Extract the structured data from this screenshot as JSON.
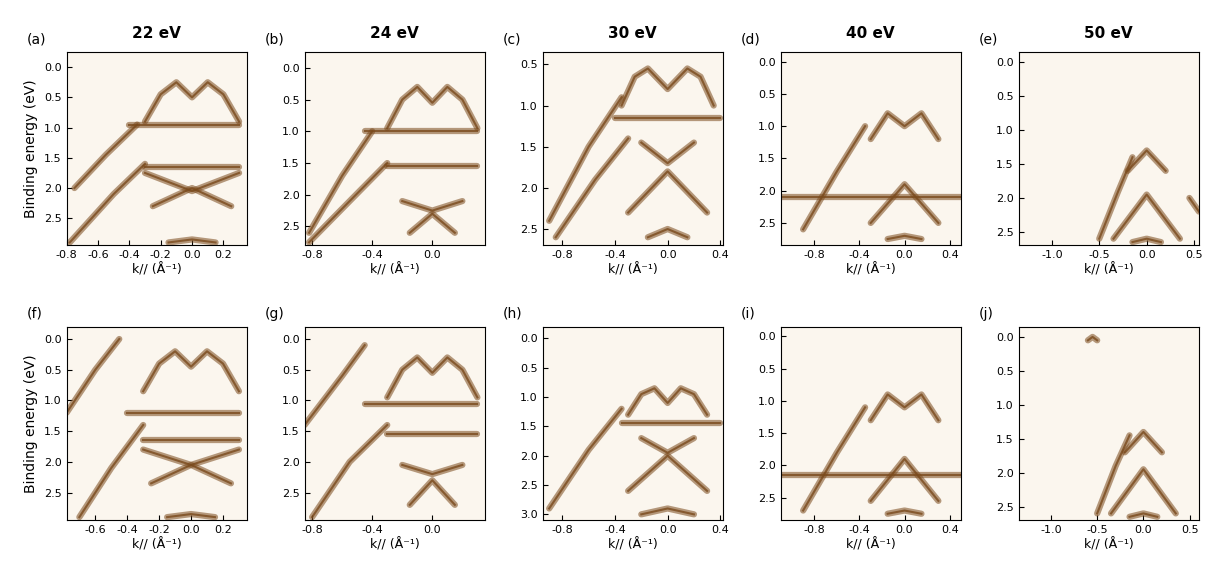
{
  "chart_data": [
    {
      "type": "line",
      "title": "22 eV",
      "annotation": "(a)",
      "color": "#7a4a1c",
      "xlabel": "k// (Å⁻¹)",
      "ylabel": "Binding energy (eV)",
      "xlim": [
        -0.8,
        0.35
      ],
      "ylim": [
        2.95,
        -0.25
      ],
      "xticks": [
        -0.8,
        -0.6,
        -0.4,
        -0.2,
        {
          "value": 0,
          "label": "0.0"
        },
        0.2
      ],
      "yticks": [
        {
          "value": 0,
          "label": "0.0"
        },
        0.5,
        {
          "value": 1,
          "label": "1.0"
        },
        1.5,
        {
          "value": 2,
          "label": "2.0"
        },
        2.5
      ],
      "series": [
        {
          "x": [
            -0.75,
            -0.55,
            -0.35
          ],
          "values": [
            2.0,
            1.45,
            0.95
          ]
        },
        {
          "x": [
            -0.78,
            -0.5,
            -0.3
          ],
          "values": [
            2.9,
            2.1,
            1.6
          ]
        },
        {
          "x": [
            -0.3,
            -0.2,
            -0.1,
            0.0,
            0.1,
            0.2,
            0.3
          ],
          "values": [
            0.9,
            0.45,
            0.25,
            0.5,
            0.25,
            0.45,
            0.9
          ]
        },
        {
          "x": [
            -0.4,
            0.3
          ],
          "values": [
            0.95,
            0.95
          ]
        },
        {
          "x": [
            -0.3,
            0.3
          ],
          "values": [
            1.65,
            1.65
          ]
        },
        {
          "x": [
            -0.3,
            0.0,
            0.3
          ],
          "values": [
            1.75,
            2.05,
            1.75
          ]
        },
        {
          "x": [
            -0.25,
            0.0,
            0.25
          ],
          "values": [
            2.3,
            2.0,
            2.3
          ]
        },
        {
          "x": [
            -0.15,
            0.0,
            0.15
          ],
          "values": [
            2.9,
            2.85,
            2.9
          ]
        }
      ]
    },
    {
      "type": "line",
      "title": "24 eV",
      "annotation": "(b)",
      "color": "#7a4a1c",
      "xlabel": "k// (Å⁻¹)",
      "xlim": [
        -0.85,
        0.35
      ],
      "ylim": [
        2.8,
        -0.25
      ],
      "xticks": [
        -0.8,
        -0.4,
        {
          "value": 0,
          "label": "0.0"
        }
      ],
      "yticks": [
        {
          "value": 0,
          "label": "0.0"
        },
        0.5,
        {
          "value": 1,
          "label": "1.0"
        },
        1.5,
        {
          "value": 2,
          "label": "2.0"
        },
        2.5
      ],
      "series": [
        {
          "x": [
            -0.82,
            -0.6,
            -0.4
          ],
          "values": [
            2.6,
            1.7,
            1.0
          ]
        },
        {
          "x": [
            -0.82,
            -0.55,
            -0.3
          ],
          "values": [
            2.75,
            2.1,
            1.5
          ]
        },
        {
          "x": [
            -0.3,
            -0.2,
            -0.1,
            0.0,
            0.1,
            0.2,
            0.3
          ],
          "values": [
            0.95,
            0.5,
            0.3,
            0.55,
            0.3,
            0.5,
            0.95
          ]
        },
        {
          "x": [
            -0.45,
            0.3
          ],
          "values": [
            1.0,
            1.0
          ]
        },
        {
          "x": [
            -0.3,
            0.3
          ],
          "values": [
            1.55,
            1.55
          ]
        },
        {
          "x": [
            -0.2,
            0.0,
            0.2
          ],
          "values": [
            2.1,
            2.25,
            2.1
          ]
        },
        {
          "x": [
            -0.15,
            0.0,
            0.15
          ],
          "values": [
            2.6,
            2.3,
            2.6
          ]
        }
      ]
    },
    {
      "type": "line",
      "title": "30 eV",
      "annotation": "(c)",
      "color": "#7a4a1c",
      "xlabel": "k// (Å⁻¹)",
      "xlim": [
        -0.95,
        0.42
      ],
      "ylim": [
        2.7,
        0.35
      ],
      "xticks": [
        -0.8,
        -0.4,
        {
          "value": 0,
          "label": "0.0"
        },
        0.4
      ],
      "yticks": [
        0.5,
        {
          "value": 1,
          "label": "1.0"
        },
        1.5,
        {
          "value": 2,
          "label": "2.0"
        },
        2.5
      ],
      "series": [
        {
          "x": [
            -0.9,
            -0.6,
            -0.35
          ],
          "values": [
            2.4,
            1.5,
            0.9
          ]
        },
        {
          "x": [
            -0.85,
            -0.55,
            -0.3
          ],
          "values": [
            2.6,
            1.9,
            1.4
          ]
        },
        {
          "x": [
            -0.35,
            -0.25,
            -0.15,
            0.0,
            0.15,
            0.25,
            0.35
          ],
          "values": [
            1.0,
            0.65,
            0.55,
            0.8,
            0.55,
            0.65,
            1.0
          ]
        },
        {
          "x": [
            -0.4,
            0.4
          ],
          "values": [
            1.15,
            1.15
          ]
        },
        {
          "x": [
            -0.2,
            0.0,
            0.2
          ],
          "values": [
            1.45,
            1.7,
            1.45
          ]
        },
        {
          "x": [
            -0.3,
            0.0,
            0.3
          ],
          "values": [
            2.3,
            1.8,
            2.3
          ]
        },
        {
          "x": [
            -0.15,
            0.0,
            0.15
          ],
          "values": [
            2.6,
            2.5,
            2.6
          ]
        }
      ]
    },
    {
      "type": "line",
      "title": "40 eV",
      "annotation": "(d)",
      "color": "#7a4a1c",
      "xlabel": "k// (Å⁻¹)",
      "xlim": [
        -1.1,
        0.5
      ],
      "ylim": [
        2.85,
        -0.15
      ],
      "xticks": [
        -0.8,
        -0.4,
        {
          "value": 0,
          "label": "0.0"
        },
        0.4
      ],
      "yticks": [
        {
          "value": 0,
          "label": "0.0"
        },
        0.5,
        {
          "value": 1,
          "label": "1.0"
        },
        1.5,
        {
          "value": 2,
          "label": "2.0"
        },
        2.5
      ],
      "series": [
        {
          "x": [
            -0.9,
            -0.6,
            -0.35
          ],
          "values": [
            2.6,
            1.7,
            1.0
          ]
        },
        {
          "x": [
            -0.3,
            -0.15,
            0.0,
            0.15,
            0.3
          ],
          "values": [
            1.2,
            0.8,
            1.0,
            0.8,
            1.2
          ]
        },
        {
          "x": [
            -0.3,
            0.0,
            0.3
          ],
          "values": [
            2.5,
            1.9,
            2.5
          ]
        },
        {
          "x": [
            -1.1,
            0.5
          ],
          "values": [
            2.1,
            2.1
          ]
        },
        {
          "x": [
            -0.15,
            0.0,
            0.15
          ],
          "values": [
            2.75,
            2.7,
            2.75
          ]
        }
      ]
    },
    {
      "type": "line",
      "title": "50 eV",
      "annotation": "(e)",
      "color": "#7a4a1c",
      "xlabel": "k// (Å⁻¹)",
      "xlim": [
        -1.35,
        0.55
      ],
      "ylim": [
        2.7,
        -0.15
      ],
      "xticks": [
        {
          "value": -1,
          "label": "-1.0"
        },
        -0.5,
        {
          "value": 0,
          "label": "0.0"
        },
        0.5
      ],
      "yticks": [
        {
          "value": 0,
          "label": "0.0"
        },
        0.5,
        {
          "value": 1,
          "label": "1.0"
        },
        1.5,
        {
          "value": 2,
          "label": "2.0"
        },
        2.5
      ],
      "series": [
        {
          "x": [
            -0.5,
            -0.3,
            -0.15
          ],
          "values": [
            2.6,
            1.9,
            1.4
          ]
        },
        {
          "x": [
            -0.2,
            0.0,
            0.2
          ],
          "values": [
            1.6,
            1.3,
            1.6
          ]
        },
        {
          "x": [
            -0.35,
            0.0,
            0.35
          ],
          "values": [
            2.6,
            1.95,
            2.6
          ]
        },
        {
          "x": [
            -0.15,
            0.0,
            0.15
          ],
          "values": [
            2.65,
            2.6,
            2.65
          ]
        },
        {
          "x": [
            0.45,
            0.55
          ],
          "values": [
            2.0,
            2.2
          ]
        }
      ]
    },
    {
      "type": "line",
      "annotation": "(f)",
      "color": "#7a4a1c",
      "xlabel": "k// (Å⁻¹)",
      "ylabel": "Binding energy (eV)",
      "xlim": [
        -0.78,
        0.35
      ],
      "ylim": [
        2.95,
        -0.2
      ],
      "xticks": [
        -0.6,
        -0.4,
        -0.2,
        {
          "value": 0,
          "label": "0.0"
        },
        0.2
      ],
      "yticks": [
        {
          "value": 0,
          "label": "0.0"
        },
        0.5,
        {
          "value": 1,
          "label": "1.0"
        },
        1.5,
        {
          "value": 2,
          "label": "2.0"
        },
        2.5
      ],
      "series": [
        {
          "x": [
            -0.78,
            -0.6,
            -0.45
          ],
          "values": [
            1.2,
            0.5,
            0.0
          ]
        },
        {
          "x": [
            -0.7,
            -0.5,
            -0.3
          ],
          "values": [
            2.9,
            2.1,
            1.4
          ]
        },
        {
          "x": [
            -0.3,
            -0.2,
            -0.1,
            0.0,
            0.1,
            0.2,
            0.3
          ],
          "values": [
            0.85,
            0.4,
            0.2,
            0.45,
            0.2,
            0.4,
            0.85
          ]
        },
        {
          "x": [
            -0.4,
            0.3
          ],
          "values": [
            1.2,
            1.2
          ]
        },
        {
          "x": [
            -0.3,
            0.3
          ],
          "values": [
            1.65,
            1.65
          ]
        },
        {
          "x": [
            -0.3,
            0.0,
            0.3
          ],
          "values": [
            1.8,
            2.05,
            1.8
          ]
        },
        {
          "x": [
            -0.25,
            0.0,
            0.25
          ],
          "values": [
            2.35,
            2.05,
            2.35
          ]
        },
        {
          "x": [
            -0.15,
            0.0,
            0.15
          ],
          "values": [
            2.9,
            2.85,
            2.9
          ]
        }
      ]
    },
    {
      "type": "line",
      "annotation": "(g)",
      "color": "#7a4a1c",
      "xlabel": "k// (Å⁻¹)",
      "xlim": [
        -0.85,
        0.35
      ],
      "ylim": [
        2.95,
        -0.2
      ],
      "xticks": [
        -0.8,
        -0.4,
        {
          "value": 0,
          "label": "0.0"
        }
      ],
      "yticks": [
        {
          "value": 0,
          "label": "0.0"
        },
        0.5,
        {
          "value": 1,
          "label": "1.0"
        },
        1.5,
        {
          "value": 2,
          "label": "2.0"
        },
        2.5
      ],
      "series": [
        {
          "x": [
            -0.85,
            -0.6,
            -0.45
          ],
          "values": [
            1.4,
            0.6,
            0.1
          ]
        },
        {
          "x": [
            -0.8,
            -0.55,
            -0.3
          ],
          "values": [
            2.9,
            2.0,
            1.4
          ]
        },
        {
          "x": [
            -0.3,
            -0.2,
            -0.1,
            0.0,
            0.1,
            0.2,
            0.3
          ],
          "values": [
            0.95,
            0.5,
            0.3,
            0.55,
            0.3,
            0.5,
            0.95
          ]
        },
        {
          "x": [
            -0.45,
            0.3
          ],
          "values": [
            1.05,
            1.05
          ]
        },
        {
          "x": [
            -0.3,
            0.3
          ],
          "values": [
            1.55,
            1.55
          ]
        },
        {
          "x": [
            -0.2,
            0.0,
            0.2
          ],
          "values": [
            2.05,
            2.2,
            2.05
          ]
        },
        {
          "x": [
            -0.15,
            0.0,
            0.15
          ],
          "values": [
            2.7,
            2.3,
            2.7
          ]
        }
      ]
    },
    {
      "type": "line",
      "annotation": "(h)",
      "color": "#7a4a1c",
      "xlabel": "k// (Å⁻¹)",
      "xlim": [
        -0.95,
        0.42
      ],
      "ylim": [
        3.1,
        -0.2
      ],
      "xticks": [
        -0.8,
        -0.4,
        {
          "value": 0,
          "label": "0.0"
        },
        0.4
      ],
      "yticks": [
        {
          "value": 0,
          "label": "0.0"
        },
        0.5,
        {
          "value": 1,
          "label": "1.0"
        },
        1.5,
        {
          "value": 2,
          "label": "2.0"
        },
        2.5,
        {
          "value": 3,
          "label": "3.0"
        }
      ],
      "series": [
        {
          "x": [
            -0.9,
            -0.6,
            -0.35
          ],
          "values": [
            2.9,
            1.9,
            1.2
          ]
        },
        {
          "x": [
            -0.3,
            -0.2,
            -0.1,
            0.0,
            0.1,
            0.2,
            0.3
          ],
          "values": [
            1.3,
            0.95,
            0.85,
            1.1,
            0.85,
            0.95,
            1.3
          ]
        },
        {
          "x": [
            -0.35,
            0.4
          ],
          "values": [
            1.45,
            1.45
          ]
        },
        {
          "x": [
            -0.2,
            0.0,
            0.2
          ],
          "values": [
            1.7,
            1.95,
            1.7
          ]
        },
        {
          "x": [
            -0.3,
            0.0,
            0.3
          ],
          "values": [
            2.6,
            2.0,
            2.6
          ]
        },
        {
          "x": [
            -0.2,
            0.0,
            0.2
          ],
          "values": [
            3.0,
            2.9,
            3.0
          ]
        }
      ]
    },
    {
      "type": "line",
      "annotation": "(i)",
      "color": "#7a4a1c",
      "xlabel": "k// (Å⁻¹)",
      "xlim": [
        -1.1,
        0.5
      ],
      "ylim": [
        2.85,
        -0.15
      ],
      "xticks": [
        -0.8,
        -0.4,
        {
          "value": 0,
          "label": "0.0"
        },
        0.4
      ],
      "yticks": [
        {
          "value": 0,
          "label": "0.0"
        },
        0.5,
        {
          "value": 1,
          "label": "1.0"
        },
        1.5,
        {
          "value": 2,
          "label": "2.0"
        },
        2.5
      ],
      "series": [
        {
          "x": [
            -0.9,
            -0.6,
            -0.35
          ],
          "values": [
            2.7,
            1.8,
            1.1
          ]
        },
        {
          "x": [
            -0.3,
            -0.15,
            0.0,
            0.15,
            0.3
          ],
          "values": [
            1.3,
            0.9,
            1.1,
            0.9,
            1.3
          ]
        },
        {
          "x": [
            -0.3,
            0.0,
            0.3
          ],
          "values": [
            2.55,
            1.9,
            2.55
          ]
        },
        {
          "x": [
            -1.1,
            0.5
          ],
          "values": [
            2.15,
            2.15
          ]
        },
        {
          "x": [
            -0.15,
            0.0,
            0.15
          ],
          "values": [
            2.75,
            2.7,
            2.75
          ]
        }
      ]
    },
    {
      "type": "line",
      "annotation": "(j)",
      "color": "#7a4a1c",
      "xlabel": "k// (Å⁻¹)",
      "xlim": [
        -1.35,
        0.6
      ],
      "ylim": [
        2.7,
        -0.15
      ],
      "xticks": [
        {
          "value": -1,
          "label": "-1.0"
        },
        -0.5,
        {
          "value": 0,
          "label": "0.0"
        },
        0.5
      ],
      "yticks": [
        {
          "value": 0,
          "label": "0.0"
        },
        0.5,
        {
          "value": 1,
          "label": "1.0"
        },
        1.5,
        {
          "value": 2,
          "label": "2.0"
        },
        2.5
      ],
      "series": [
        {
          "x": [
            -0.6,
            -0.55,
            -0.5
          ],
          "values": [
            0.05,
            0.0,
            0.05
          ]
        },
        {
          "x": [
            -0.5,
            -0.3,
            -0.15
          ],
          "values": [
            2.6,
            1.9,
            1.45
          ]
        },
        {
          "x": [
            -0.2,
            0.0,
            0.2
          ],
          "values": [
            1.7,
            1.4,
            1.7
          ]
        },
        {
          "x": [
            -0.35,
            0.0,
            0.35
          ],
          "values": [
            2.6,
            1.95,
            2.6
          ]
        },
        {
          "x": [
            -0.15,
            0.0,
            0.15
          ],
          "values": [
            2.65,
            2.6,
            2.65
          ]
        }
      ]
    }
  ]
}
